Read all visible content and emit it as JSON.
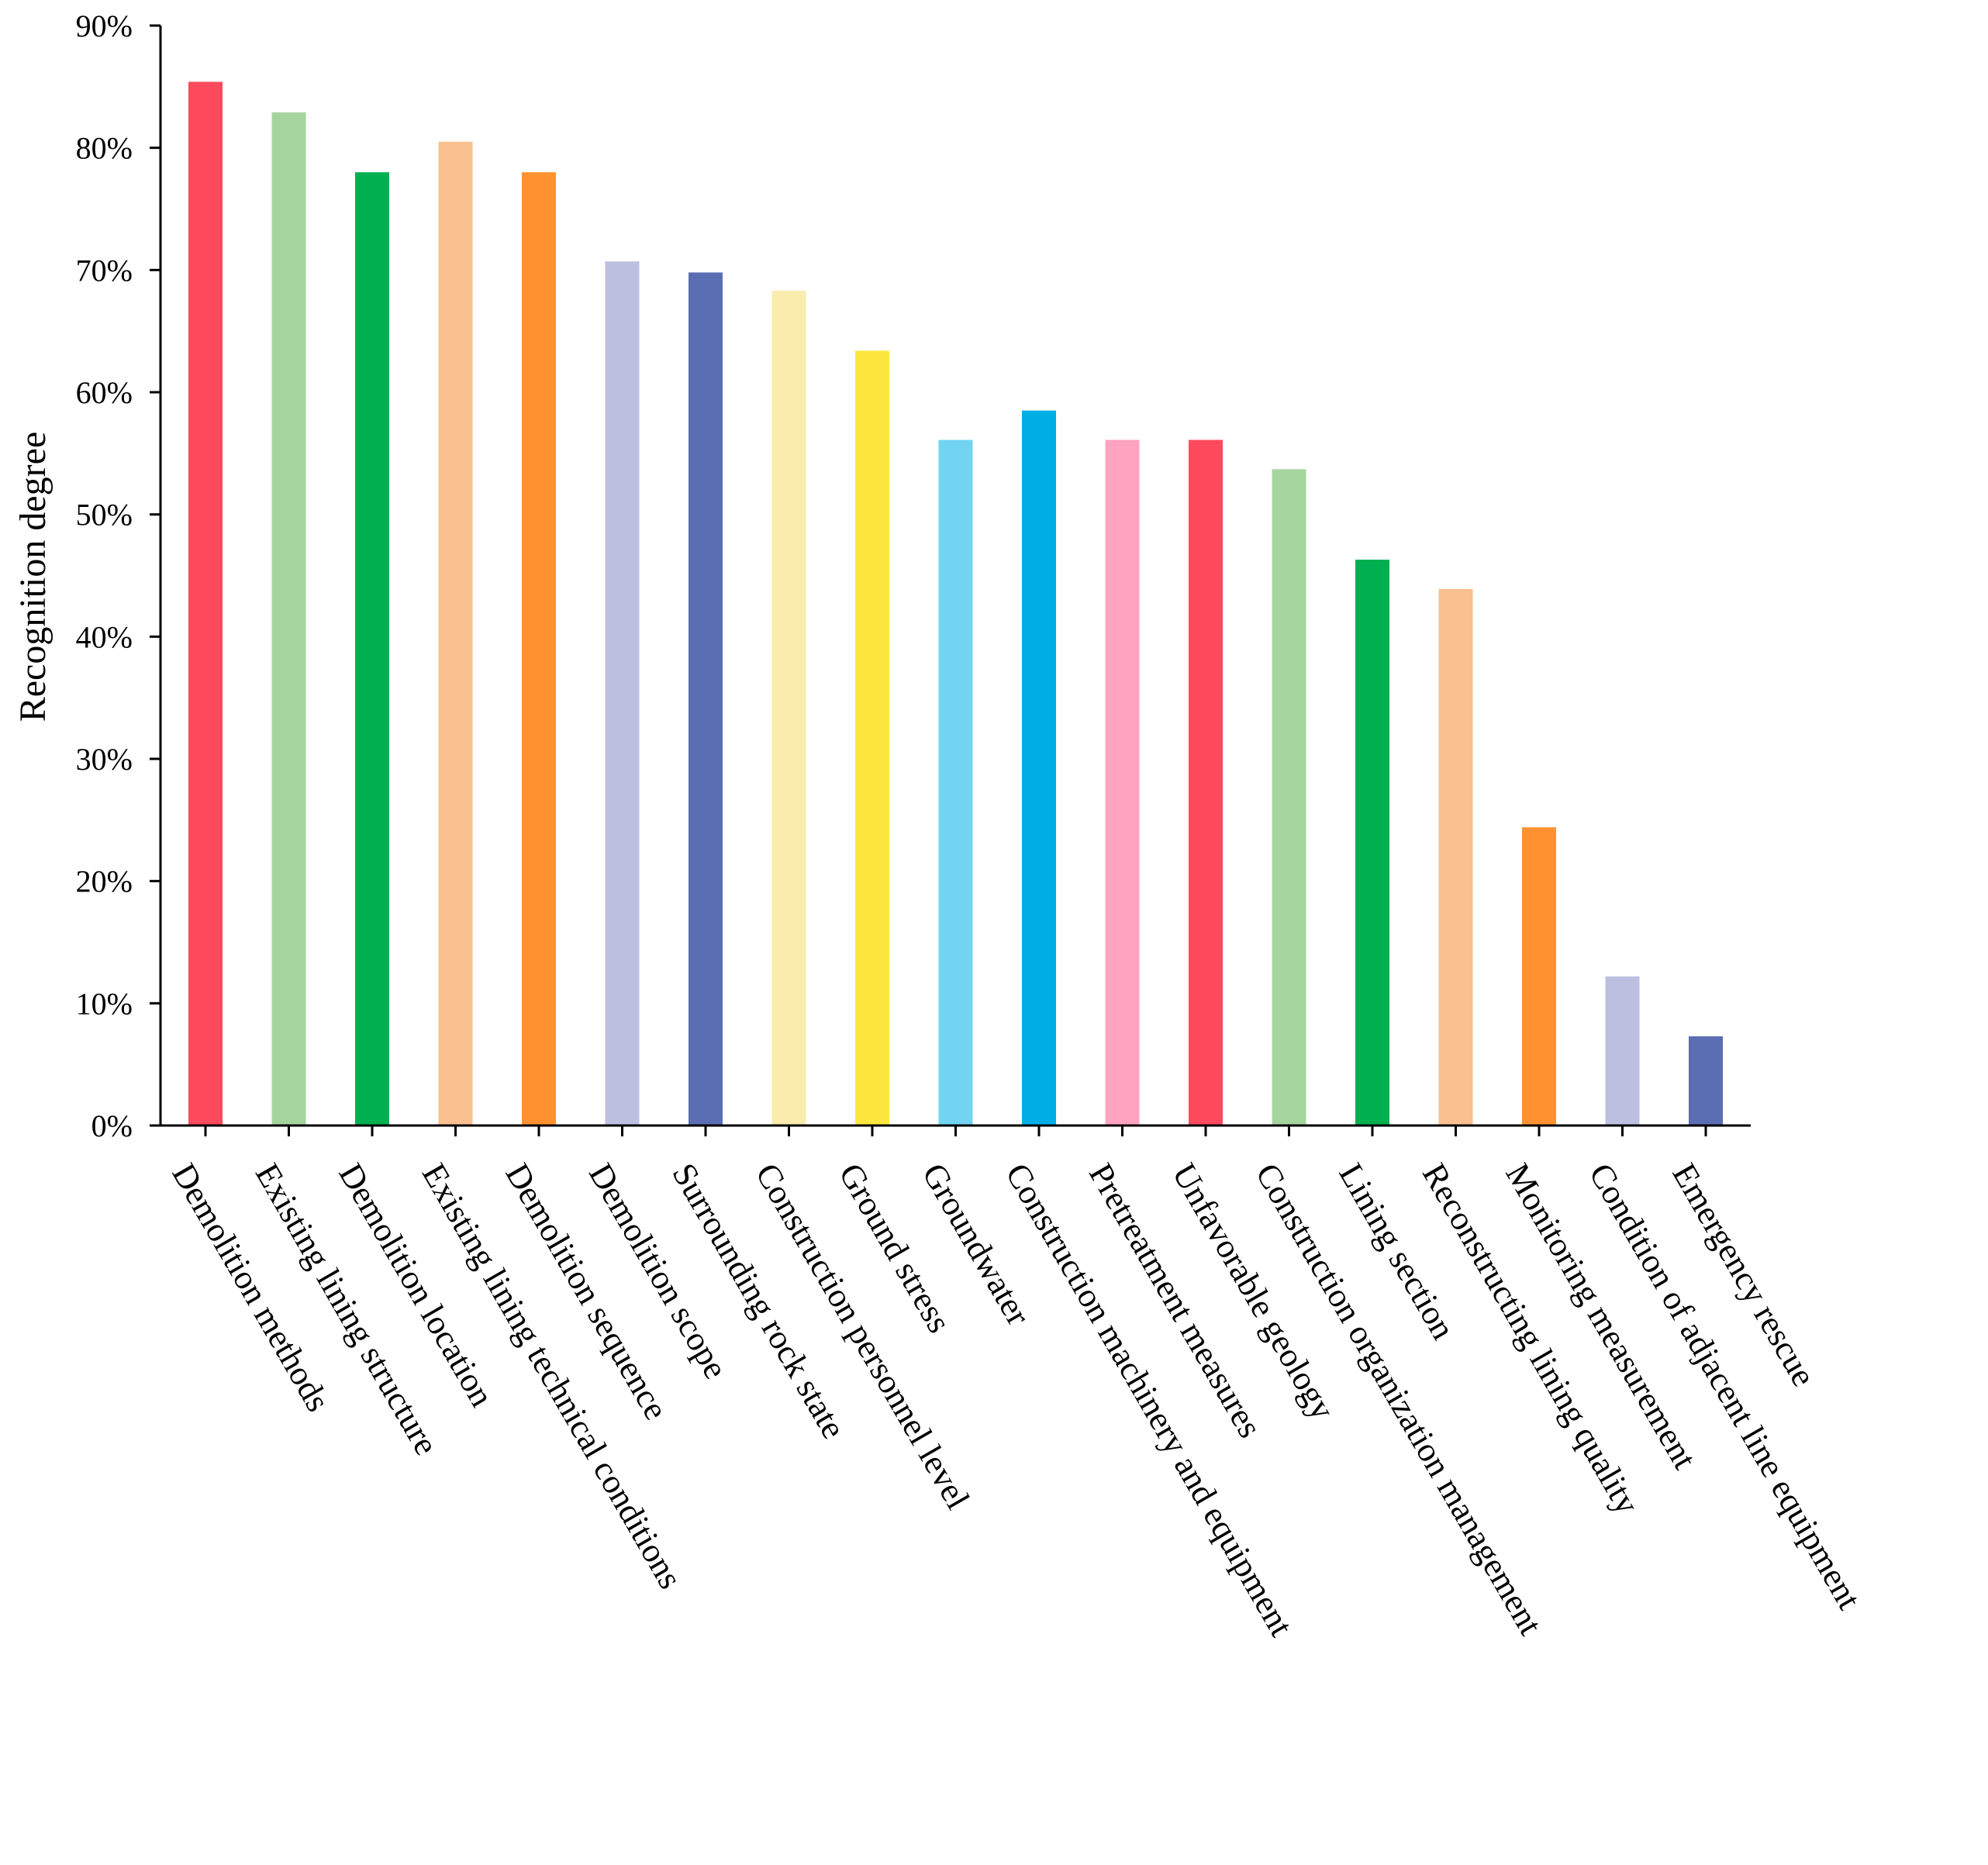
{
  "chart_data": {
    "type": "bar",
    "title": "",
    "xlabel": "",
    "ylabel": "Recognition degree",
    "ylim": [
      0,
      90
    ],
    "yticks": [
      0,
      10,
      20,
      30,
      40,
      50,
      60,
      70,
      80,
      90
    ],
    "ytick_labels": [
      "0%",
      "10%",
      "20%",
      "30%",
      "40%",
      "50%",
      "60%",
      "70%",
      "80%",
      "90%"
    ],
    "grid": false,
    "categories": [
      "Demolition methods",
      "Existing lining structure",
      "Demolition location",
      "Existing lining technical conditions",
      "Demolition sequence",
      "Demolition scope",
      "Surrounding rock state",
      "Construction personnel level",
      "Ground stress",
      "Groundwater",
      "Construction machinery and equipment",
      "Pretreatment measures",
      "Unfavorable geology",
      "Construction organization management",
      "Lining section",
      "Reconstructing lining quality",
      "Monitoring measurement",
      "Condition of adjacent line equipment",
      "Emergency rescue"
    ],
    "values": [
      85.4,
      82.9,
      78.0,
      80.5,
      78.0,
      70.7,
      69.8,
      68.3,
      63.4,
      56.1,
      58.5,
      56.1,
      56.1,
      53.7,
      46.3,
      43.9,
      24.4,
      12.2,
      7.3
    ],
    "colors": [
      "#fd4a5c",
      "#a6d49f",
      "#00b050",
      "#fac090",
      "#ff9130",
      "#bdbfe0",
      "#5b6db3",
      "#f9ecad",
      "#fde73f",
      "#72d4f0",
      "#00aee6",
      "#ffa3c1",
      "#fd4a5c",
      "#a6d49f",
      "#00b050",
      "#fac090",
      "#ff9130",
      "#bdbfe0",
      "#5b6db3"
    ]
  }
}
